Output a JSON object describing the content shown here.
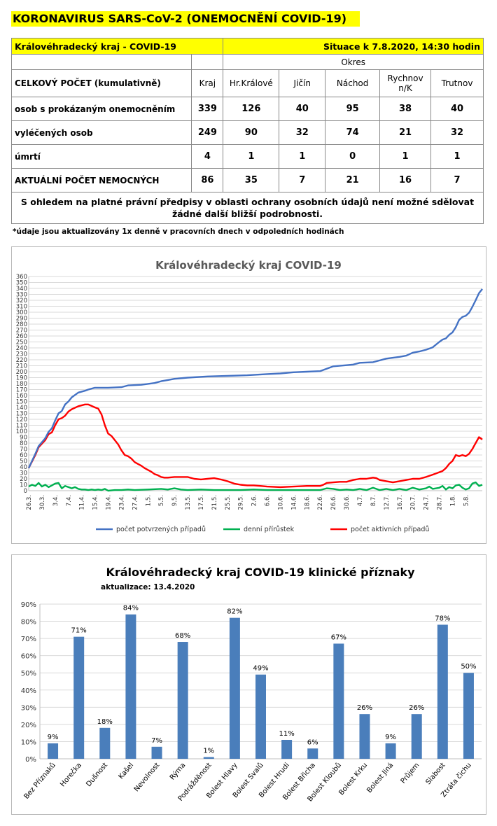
{
  "header": {
    "title": "KORONAVIRUS SARS-CoV-2 (ONEMOCNĚNÍ COVID-19)"
  },
  "table": {
    "region_title": "Královéhradecký kraj - COVID-19",
    "situation": "Situace k 7.8.2020, 14:30 hodin",
    "okres_label": "Okres",
    "total_label": "CELKOVÝ POČET (kumulativně)",
    "columns": [
      "Kraj",
      "Hr.Králové",
      "Jičín",
      "Náchod",
      "Rychnov n/K",
      "Trutnov"
    ],
    "rows": [
      {
        "label": "osob s prokázaným onemocněním",
        "values": [
          "339",
          "126",
          "40",
          "95",
          "38",
          "40"
        ]
      },
      {
        "label": "vyléčených osob",
        "values": [
          "249",
          "90",
          "32",
          "74",
          "21",
          "32"
        ]
      },
      {
        "label": "úmrtí",
        "values": [
          "4",
          "1",
          "1",
          "0",
          "1",
          "1"
        ]
      },
      {
        "label": "AKTUÁLNÍ POČET NEMOCNÝCH",
        "values": [
          "86",
          "35",
          "7",
          "21",
          "16",
          "7"
        ]
      }
    ],
    "note": "S ohledem na platné právní předpisy v oblasti ochrany osobních údajů není možné sdělovat žádné další bližší podrobnosti."
  },
  "footnote": "*údaje jsou aktualizovány 1x denně v pracovních dnech v odpoledních hodinách",
  "colors": {
    "accent": "#ffff00",
    "blue": "#4472c4",
    "green": "#00b050",
    "red": "#ff0000",
    "bar": "#4a7ebb"
  },
  "chart_data": [
    {
      "type": "line",
      "title": "Královéhradecký kraj COVID-19",
      "xlabel": "",
      "ylabel": "",
      "ylim": [
        0,
        360
      ],
      "yticks": [
        0,
        10,
        20,
        30,
        40,
        50,
        60,
        70,
        80,
        90,
        100,
        110,
        120,
        130,
        140,
        150,
        160,
        170,
        180,
        190,
        200,
        210,
        220,
        230,
        240,
        250,
        260,
        270,
        280,
        290,
        300,
        310,
        320,
        330,
        340,
        350,
        360
      ],
      "grid": true,
      "legend": "bottom",
      "x_ticks": [
        "26.3.",
        "30.3.",
        "3.4.",
        "7.4.",
        "11.4.",
        "15.4.",
        "19.4.",
        "23.4.",
        "27.4.",
        "1.5.",
        "5.5.",
        "9.5.",
        "13.5.",
        "17.5.",
        "21.5.",
        "25.5.",
        "29.5.",
        "2.6.",
        "6.6.",
        "10.6.",
        "14.6.",
        "18.6.",
        "22.6.",
        "26.6.",
        "30.6.",
        "4.7.",
        "8.7.",
        "12.7.",
        "16.7.",
        "20.7.",
        "24.7.",
        "28.7.",
        "1.8.",
        "5.8."
      ],
      "x_tick_days": [
        0,
        4,
        8,
        12,
        16,
        20,
        24,
        28,
        32,
        36,
        40,
        44,
        48,
        52,
        56,
        60,
        64,
        68,
        72,
        76,
        80,
        84,
        88,
        92,
        96,
        100,
        104,
        108,
        112,
        116,
        120,
        124,
        128,
        132
      ],
      "series": [
        {
          "name": "počet potvrzených případů",
          "color": "#4472c4",
          "points": [
            [
              0,
              38
            ],
            [
              2,
              62
            ],
            [
              3,
              75
            ],
            [
              5,
              88
            ],
            [
              6,
              99
            ],
            [
              7,
              105
            ],
            [
              8,
              118
            ],
            [
              9,
              130
            ],
            [
              10,
              134
            ],
            [
              11,
              145
            ],
            [
              12,
              150
            ],
            [
              13,
              157
            ],
            [
              15,
              165
            ],
            [
              17,
              168
            ],
            [
              18,
              170
            ],
            [
              20,
              173
            ],
            [
              24,
              173
            ],
            [
              28,
              174
            ],
            [
              30,
              177
            ],
            [
              34,
              178
            ],
            [
              38,
              181
            ],
            [
              40,
              184
            ],
            [
              42,
              186
            ],
            [
              44,
              188
            ],
            [
              48,
              190
            ],
            [
              54,
              192
            ],
            [
              60,
              193
            ],
            [
              66,
              194
            ],
            [
              72,
              196
            ],
            [
              76,
              197
            ],
            [
              80,
              199
            ],
            [
              84,
              200
            ],
            [
              88,
              201
            ],
            [
              90,
              205
            ],
            [
              92,
              209
            ],
            [
              96,
              211
            ],
            [
              98,
              212
            ],
            [
              100,
              215
            ],
            [
              104,
              216
            ],
            [
              106,
              219
            ],
            [
              108,
              222
            ],
            [
              112,
              225
            ],
            [
              114,
              227
            ],
            [
              116,
              232
            ],
            [
              118,
              234
            ],
            [
              120,
              237
            ],
            [
              122,
              241
            ],
            [
              124,
              250
            ],
            [
              125,
              254
            ],
            [
              126,
              256
            ],
            [
              127,
              262
            ],
            [
              128,
              266
            ],
            [
              129,
              275
            ],
            [
              130,
              287
            ],
            [
              131,
              292
            ],
            [
              132,
              294
            ],
            [
              133,
              299
            ],
            [
              134,
              309
            ],
            [
              135,
              320
            ],
            [
              136,
              332
            ],
            [
              137,
              339
            ]
          ]
        },
        {
          "name": "denní přírůstek",
          "color": "#00b050",
          "points": [
            [
              0,
              7
            ],
            [
              1,
              10
            ],
            [
              2,
              8
            ],
            [
              3,
              13
            ],
            [
              4,
              7
            ],
            [
              5,
              10
            ],
            [
              6,
              6
            ],
            [
              7,
              9
            ],
            [
              8,
              12
            ],
            [
              9,
              13
            ],
            [
              10,
              4
            ],
            [
              11,
              8
            ],
            [
              12,
              6
            ],
            [
              13,
              4
            ],
            [
              14,
              6
            ],
            [
              15,
              3
            ],
            [
              16,
              2
            ],
            [
              17,
              2
            ],
            [
              18,
              1
            ],
            [
              19,
              2
            ],
            [
              20,
              1
            ],
            [
              21,
              2
            ],
            [
              22,
              1
            ],
            [
              23,
              3
            ],
            [
              24,
              0
            ],
            [
              26,
              1
            ],
            [
              28,
              1
            ],
            [
              30,
              2
            ],
            [
              32,
              1
            ],
            [
              36,
              2
            ],
            [
              40,
              3
            ],
            [
              42,
              2
            ],
            [
              44,
              4
            ],
            [
              46,
              2
            ],
            [
              48,
              1
            ],
            [
              52,
              2
            ],
            [
              56,
              1
            ],
            [
              60,
              1
            ],
            [
              64,
              1
            ],
            [
              68,
              2
            ],
            [
              72,
              1
            ],
            [
              76,
              1
            ],
            [
              80,
              1
            ],
            [
              84,
              1
            ],
            [
              88,
              1
            ],
            [
              90,
              4
            ],
            [
              92,
              3
            ],
            [
              94,
              1
            ],
            [
              96,
              2
            ],
            [
              98,
              1
            ],
            [
              100,
              3
            ],
            [
              102,
              1
            ],
            [
              104,
              5
            ],
            [
              106,
              1
            ],
            [
              108,
              3
            ],
            [
              110,
              1
            ],
            [
              112,
              3
            ],
            [
              114,
              1
            ],
            [
              116,
              5
            ],
            [
              118,
              2
            ],
            [
              120,
              4
            ],
            [
              121,
              7
            ],
            [
              122,
              3
            ],
            [
              124,
              5
            ],
            [
              125,
              8
            ],
            [
              126,
              2
            ],
            [
              127,
              6
            ],
            [
              128,
              4
            ],
            [
              129,
              9
            ],
            [
              130,
              10
            ],
            [
              131,
              5
            ],
            [
              132,
              2
            ],
            [
              133,
              4
            ],
            [
              134,
              12
            ],
            [
              135,
              14
            ],
            [
              136,
              8
            ],
            [
              137,
              10
            ]
          ]
        },
        {
          "name": "počet aktivních případů",
          "color": "#ff0000",
          "points": [
            [
              0,
              38
            ],
            [
              2,
              60
            ],
            [
              3,
              73
            ],
            [
              5,
              85
            ],
            [
              6,
              95
            ],
            [
              7,
              98
            ],
            [
              8,
              110
            ],
            [
              9,
              120
            ],
            [
              10,
              122
            ],
            [
              11,
              126
            ],
            [
              12,
              133
            ],
            [
              13,
              137
            ],
            [
              15,
              142
            ],
            [
              17,
              145
            ],
            [
              18,
              145
            ],
            [
              20,
              140
            ],
            [
              21,
              138
            ],
            [
              22,
              128
            ],
            [
              23,
              110
            ],
            [
              24,
              96
            ],
            [
              25,
              92
            ],
            [
              26,
              85
            ],
            [
              27,
              78
            ],
            [
              28,
              68
            ],
            [
              29,
              60
            ],
            [
              30,
              58
            ],
            [
              31,
              54
            ],
            [
              32,
              48
            ],
            [
              33,
              45
            ],
            [
              34,
              42
            ],
            [
              35,
              38
            ],
            [
              36,
              35
            ],
            [
              37,
              32
            ],
            [
              38,
              28
            ],
            [
              39,
              26
            ],
            [
              40,
              23
            ],
            [
              41,
              22
            ],
            [
              42,
              22
            ],
            [
              44,
              23
            ],
            [
              46,
              23
            ],
            [
              48,
              23
            ],
            [
              50,
              20
            ],
            [
              52,
              19
            ],
            [
              54,
              20
            ],
            [
              56,
              21
            ],
            [
              58,
              19
            ],
            [
              60,
              16
            ],
            [
              62,
              12
            ],
            [
              64,
              10
            ],
            [
              66,
              9
            ],
            [
              68,
              9
            ],
            [
              70,
              8
            ],
            [
              72,
              7
            ],
            [
              76,
              6
            ],
            [
              80,
              7
            ],
            [
              84,
              8
            ],
            [
              88,
              8
            ],
            [
              89,
              10
            ],
            [
              90,
              13
            ],
            [
              92,
              14
            ],
            [
              94,
              15
            ],
            [
              96,
              15
            ],
            [
              98,
              18
            ],
            [
              100,
              20
            ],
            [
              102,
              20
            ],
            [
              104,
              22
            ],
            [
              105,
              21
            ],
            [
              106,
              18
            ],
            [
              108,
              16
            ],
            [
              110,
              14
            ],
            [
              112,
              16
            ],
            [
              114,
              18
            ],
            [
              116,
              20
            ],
            [
              118,
              20
            ],
            [
              120,
              23
            ],
            [
              121,
              25
            ],
            [
              122,
              27
            ],
            [
              123,
              29
            ],
            [
              124,
              31
            ],
            [
              125,
              33
            ],
            [
              126,
              38
            ],
            [
              127,
              45
            ],
            [
              128,
              50
            ],
            [
              129,
              60
            ],
            [
              130,
              58
            ],
            [
              131,
              60
            ],
            [
              132,
              58
            ],
            [
              133,
              62
            ],
            [
              134,
              70
            ],
            [
              135,
              80
            ],
            [
              136,
              90
            ],
            [
              137,
              86
            ]
          ]
        }
      ]
    },
    {
      "type": "bar",
      "title": "Královéhradecký kraj COVID-19 klinické příznaky",
      "subtitle": "aktualizace: 13.4.2020",
      "xlabel": "",
      "ylabel": "",
      "ylim": [
        0,
        90
      ],
      "yticks": [
        "0%",
        "10%",
        "20%",
        "30%",
        "40%",
        "50%",
        "60%",
        "70%",
        "80%",
        "90%"
      ],
      "grid": true,
      "categories": [
        "Bez Příznaků",
        "Horečka",
        "Dušnost",
        "Kašel",
        "Nevolnost",
        "Rýma",
        "Podrážděnost",
        "Bolest Hlavy",
        "Bolest Svalů",
        "Bolest Hrudi",
        "Bolest Břicha",
        "Bolest Kloubů",
        "Bolest Krku",
        "Bolest Jiná",
        "Průjem",
        "Slabost",
        "Ztráta čichu"
      ],
      "values": [
        9,
        71,
        18,
        84,
        7,
        68,
        1,
        82,
        49,
        11,
        6,
        67,
        26,
        9,
        26,
        78,
        50
      ],
      "data_labels": [
        "9%",
        "71%",
        "18%",
        "84%",
        "7%",
        "68%",
        "1%",
        "82%",
        "49%",
        "11%",
        "6%",
        "67%",
        "26%",
        "9%",
        "26%",
        "78%",
        "50%"
      ]
    }
  ]
}
